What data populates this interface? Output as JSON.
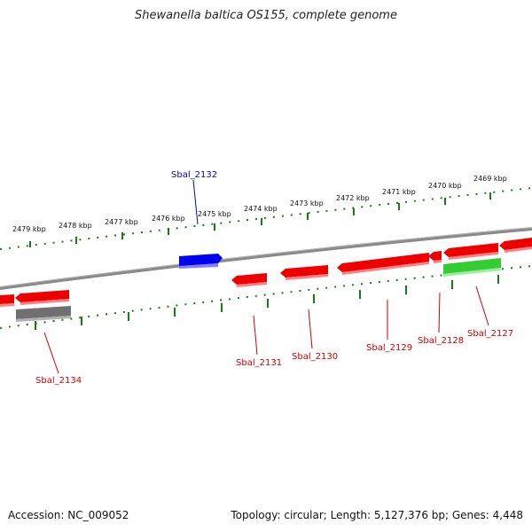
{
  "title": "Shewanella baltica OS155, complete genome",
  "footer": {
    "accession": "Accession: NC_009052",
    "summary": "Topology: circular; Length: 5,127,376 bp; Genes: 4,448"
  },
  "colors": {
    "backbone": "#808080",
    "ticks": "#1a7a1a",
    "forward_gene": "#0000ee",
    "reverse_gene": "#ee0000",
    "green_gene": "#33cc33",
    "gray_gene": "#707070",
    "label_forward": "#0000cc",
    "label_reverse": "#cc0000"
  },
  "scale_labels": [
    "2479 kbp",
    "2478 kbp",
    "2477 kbp",
    "2476 kbp",
    "2475 kbp",
    "2474 kbp",
    "2473 kbp",
    "2472 kbp",
    "2471 kbp",
    "2470 kbp",
    "2469 kbp"
  ],
  "gene_labels": [
    "Sbal_2132",
    "Sbal_2134",
    "Sbal_2131",
    "Sbal_2130",
    "Sbal_2129",
    "Sbal_2128",
    "Sbal_2127"
  ]
}
